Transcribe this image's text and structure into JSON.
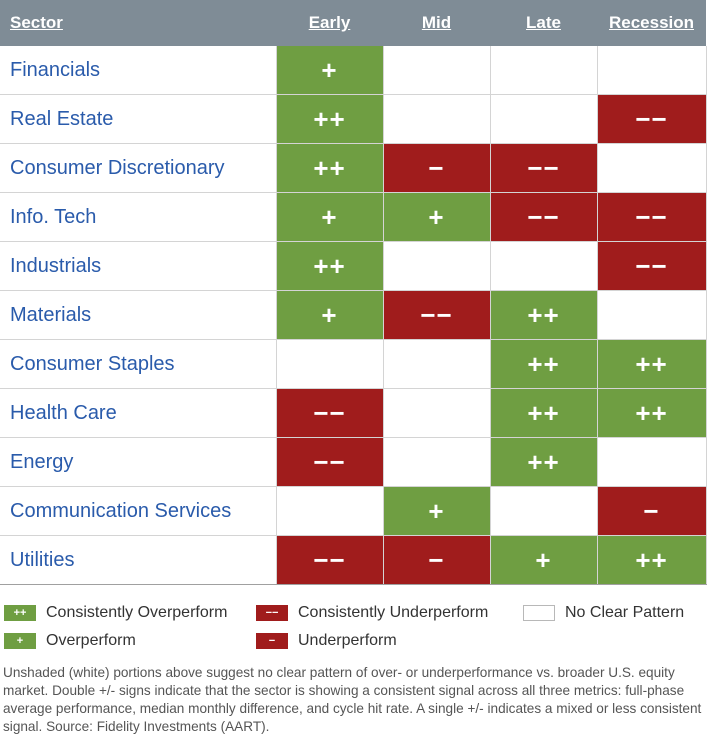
{
  "chart_data": {
    "type": "table",
    "columns": [
      "Sector",
      "Early",
      "Mid",
      "Late",
      "Recession"
    ],
    "rows": [
      {
        "sector": "Financials",
        "cells": [
          {
            "t": "+",
            "c": "p"
          },
          {
            "t": "",
            "c": ""
          },
          {
            "t": "",
            "c": ""
          },
          {
            "t": "",
            "c": ""
          }
        ]
      },
      {
        "sector": "Real Estate",
        "cells": [
          {
            "t": "++",
            "c": "pp"
          },
          {
            "t": "",
            "c": ""
          },
          {
            "t": "",
            "c": ""
          },
          {
            "t": "−−",
            "c": "mm"
          }
        ]
      },
      {
        "sector": "Consumer Discretionary",
        "cells": [
          {
            "t": "++",
            "c": "pp"
          },
          {
            "t": "−",
            "c": "m"
          },
          {
            "t": "−−",
            "c": "mm"
          },
          {
            "t": "",
            "c": ""
          }
        ]
      },
      {
        "sector": "Info. Tech",
        "cells": [
          {
            "t": "+",
            "c": "p"
          },
          {
            "t": "+",
            "c": "p"
          },
          {
            "t": "−−",
            "c": "mm"
          },
          {
            "t": "−−",
            "c": "mm"
          }
        ]
      },
      {
        "sector": "Industrials",
        "cells": [
          {
            "t": "++",
            "c": "pp"
          },
          {
            "t": "",
            "c": ""
          },
          {
            "t": "",
            "c": ""
          },
          {
            "t": "−−",
            "c": "mm"
          }
        ]
      },
      {
        "sector": "Materials",
        "cells": [
          {
            "t": "+",
            "c": "p"
          },
          {
            "t": "−−",
            "c": "mm"
          },
          {
            "t": "++",
            "c": "pp"
          },
          {
            "t": "",
            "c": ""
          }
        ]
      },
      {
        "sector": "Consumer Staples",
        "cells": [
          {
            "t": "",
            "c": ""
          },
          {
            "t": "",
            "c": ""
          },
          {
            "t": "++",
            "c": "pp"
          },
          {
            "t": "++",
            "c": "pp"
          }
        ]
      },
      {
        "sector": "Health Care",
        "cells": [
          {
            "t": "−−",
            "c": "mm"
          },
          {
            "t": "",
            "c": ""
          },
          {
            "t": "++",
            "c": "pp"
          },
          {
            "t": "++",
            "c": "pp"
          }
        ]
      },
      {
        "sector": "Energy",
        "cells": [
          {
            "t": "−−",
            "c": "mm"
          },
          {
            "t": "",
            "c": ""
          },
          {
            "t": "++",
            "c": "pp"
          },
          {
            "t": "",
            "c": ""
          }
        ]
      },
      {
        "sector": "Communication Services",
        "cells": [
          {
            "t": "",
            "c": ""
          },
          {
            "t": "+",
            "c": "p"
          },
          {
            "t": "",
            "c": ""
          },
          {
            "t": "−",
            "c": "m"
          }
        ]
      },
      {
        "sector": "Utilities",
        "cells": [
          {
            "t": "−−",
            "c": "mm"
          },
          {
            "t": "−",
            "c": "m"
          },
          {
            "t": "+",
            "c": "p"
          },
          {
            "t": "++",
            "c": "pp"
          }
        ]
      }
    ]
  },
  "legend": {
    "consistent_over": {
      "symbol": "++",
      "label": "Consistently Overperform"
    },
    "consistent_under": {
      "symbol": "−−",
      "label": "Consistently Underperform"
    },
    "none": {
      "label": "No Clear Pattern"
    },
    "over": {
      "symbol": "+",
      "label": "Overperform"
    },
    "under": {
      "symbol": "−",
      "label": "Underperform"
    }
  },
  "colors": {
    "green": "#6f9e42",
    "red": "#a01c1c",
    "header": "#7f8c96",
    "sector_text": "#2a5bab"
  },
  "footnote": "Unshaded (white) portions above suggest no clear pattern of over- or underperformance vs. broader U.S. equity market. Double +/- signs indicate that the sector is showing a consistent signal across all three metrics: full-phase average performance, median monthly difference, and cycle hit rate. A single +/- indicates a mixed or less consistent signal. Source: Fidelity Investments (AART)."
}
